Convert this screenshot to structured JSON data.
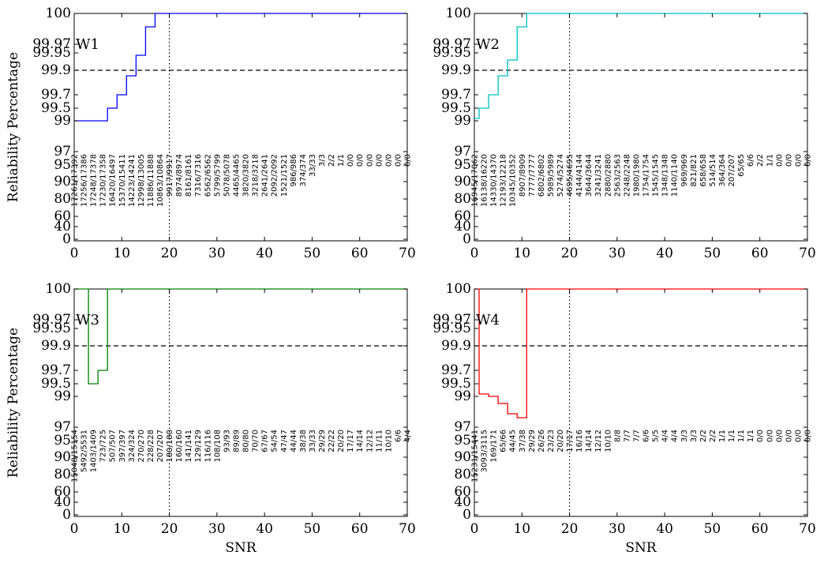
{
  "chart_data": [
    {
      "type": "line",
      "panel": "W1",
      "color": "#0000ff",
      "ylabel": "Reliability Percentage",
      "xlabel": "",
      "xlim": [
        0,
        70
      ],
      "xticks": [
        0,
        10,
        20,
        30,
        40,
        50,
        60,
        70
      ],
      "yticks": [
        "0",
        "40",
        "60",
        "80",
        "90",
        "95",
        "97",
        "99",
        "99.5",
        "99.7",
        "99.9",
        "99.95",
        "99.97",
        "100"
      ],
      "threshold_y": "99.9",
      "vline_x": 20,
      "step_x": [
        0,
        7,
        9,
        11,
        13,
        15,
        17,
        70
      ],
      "step_y": [
        "99",
        "99.5",
        "99.7",
        "99.8",
        "99.92",
        "99.98",
        "100",
        "100"
      ],
      "count_x": [
        0,
        2,
        4,
        6,
        8,
        10,
        12,
        14,
        16,
        18,
        20,
        22,
        24,
        26,
        28,
        30,
        32,
        34,
        36,
        38,
        40,
        42,
        44,
        46,
        48,
        50,
        52,
        54,
        56,
        58,
        60,
        62,
        64,
        66,
        68,
        70
      ],
      "counts": [
        "17261/17392",
        "17256/17386",
        "17248/17378",
        "17230/17358",
        "16420/16497",
        "15370/15411",
        "14223/14241",
        "12998/13005",
        "11886/11888",
        "10863/10864",
        "9917/9917",
        "8974/8974",
        "8161/8161",
        "7316/7316",
        "6562/6562",
        "5799/5799",
        "5078/5078",
        "4465/4465",
        "3820/3820",
        "3218/3218",
        "2641/2641",
        "2092/2092",
        "1521/1521",
        "986/986",
        "374/374",
        "33/33",
        "3/3",
        "2/2",
        "1/1",
        "0/0",
        "0/0",
        "0/0",
        "0/0",
        "0/0",
        "0/0",
        "0/0"
      ]
    },
    {
      "type": "line",
      "panel": "W2",
      "color": "#00bfbf",
      "ylabel": "",
      "xlabel": "",
      "xlim": [
        0,
        70
      ],
      "xticks": [
        0,
        10,
        20,
        30,
        40,
        50,
        60,
        70
      ],
      "yticks": [
        "0",
        "40",
        "60",
        "80",
        "90",
        "95",
        "97",
        "99",
        "99.5",
        "99.7",
        "99.9",
        "99.95",
        "99.97",
        "100"
      ],
      "threshold_y": "99.9",
      "vline_x": 20,
      "step_x": [
        0,
        1,
        3,
        5,
        7,
        9,
        11,
        70
      ],
      "step_y": [
        "99.3",
        "99.5",
        "99.7",
        "99.8",
        "99.93",
        "99.98",
        "100",
        "100"
      ],
      "count_x": [
        0,
        2,
        4,
        6,
        8,
        10,
        12,
        14,
        16,
        18,
        20,
        22,
        24,
        26,
        28,
        30,
        32,
        34,
        36,
        38,
        40,
        42,
        44,
        46,
        48,
        50,
        52,
        54,
        56,
        58,
        60,
        62,
        64,
        66,
        68,
        70
      ],
      "counts": [
        "16945/17062",
        "16138/16220",
        "14330/14370",
        "12193/12218",
        "10345/10352",
        "8907/8909",
        "7777/7777",
        "6802/6802",
        "5989/5989",
        "5274/5274",
        "4695/4695",
        "4144/4144",
        "3644/3644",
        "3241/3241",
        "2880/2880",
        "2563/2563",
        "2248/2248",
        "1980/1980",
        "1754/1754",
        "1545/1545",
        "1348/1348",
        "1140/1140",
        "969/969",
        "821/821",
        "658/658",
        "514/514",
        "364/364",
        "207/207",
        "65/65",
        "6/6",
        "2/2",
        "1/1",
        "0/0",
        "0/0",
        "0/0",
        "0/0"
      ]
    },
    {
      "type": "line",
      "panel": "W3",
      "color": "#008000",
      "ylabel": "Reliability Percentage",
      "xlabel": "SNR",
      "xlim": [
        0,
        70
      ],
      "xticks": [
        0,
        10,
        20,
        30,
        40,
        50,
        60,
        70
      ],
      "yticks": [
        "0",
        "40",
        "60",
        "80",
        "90",
        "95",
        "97",
        "99",
        "99.5",
        "99.7",
        "99.9",
        "99.95",
        "99.97",
        "100"
      ],
      "threshold_y": "99.9",
      "vline_x": 20,
      "step_x": [
        0,
        3,
        5,
        7,
        70
      ],
      "step_y": [
        "99.2",
        "99.5",
        "99.7",
        "100",
        "100"
      ],
      "count_x": [
        0,
        2,
        4,
        6,
        8,
        10,
        12,
        14,
        16,
        18,
        20,
        22,
        24,
        26,
        28,
        30,
        32,
        34,
        36,
        38,
        40,
        42,
        44,
        46,
        48,
        50,
        52,
        54,
        56,
        58,
        60,
        62,
        64,
        66,
        68,
        70
      ],
      "counts": [
        "15048/15154",
        "5492/5531",
        "1403/1409",
        "723/725",
        "507/507",
        "397/397",
        "324/324",
        "270/270",
        "228/228",
        "207/207",
        "180/180",
        "160/160",
        "141/141",
        "129/129",
        "116/116",
        "108/108",
        "93/93",
        "89/89",
        "80/80",
        "70/70",
        "67/67",
        "54/54",
        "47/47",
        "44/44",
        "38/38",
        "33/33",
        "29/29",
        "22/22",
        "20/20",
        "17/17",
        "14/14",
        "12/12",
        "11/11",
        "10/10",
        "6/6",
        "4/4"
      ]
    },
    {
      "type": "line",
      "panel": "W4",
      "color": "#ff0000",
      "ylabel": "",
      "xlabel": "SNR",
      "xlim": [
        0,
        70
      ],
      "xticks": [
        0,
        10,
        20,
        30,
        40,
        50,
        60,
        70
      ],
      "yticks": [
        "0",
        "40",
        "60",
        "80",
        "90",
        "95",
        "97",
        "99",
        "99.5",
        "99.7",
        "99.9",
        "99.95",
        "99.97",
        "100"
      ],
      "threshold_y": "99.9",
      "vline_x": 20,
      "step_x": [
        0,
        1,
        3,
        5,
        7,
        9,
        11,
        70
      ],
      "step_y": [
        "99.2",
        "99.3",
        "99",
        "98.8",
        "98",
        "97.5",
        "100",
        "100"
      ],
      "count_x": [
        0,
        2,
        4,
        6,
        8,
        10,
        12,
        14,
        16,
        18,
        20,
        22,
        24,
        26,
        28,
        30,
        32,
        34,
        36,
        38,
        40,
        42,
        44,
        46,
        48,
        50,
        52,
        54,
        56,
        58,
        60,
        62,
        64,
        66,
        68,
        70
      ],
      "counts": [
        "15231/15441",
        "3093/3115",
        "169/171",
        "65/66",
        "44/45",
        "37/38",
        "29/29",
        "26/26",
        "23/23",
        "20/20",
        "17/17",
        "16/16",
        "14/14",
        "12/12",
        "10/10",
        "8/8",
        "7/7",
        "7/7",
        "6/6",
        "5/5",
        "4/4",
        "4/4",
        "3/3",
        "3/3",
        "2/2",
        "2/2",
        "1/1",
        "1/1",
        "1/1",
        "1/1",
        "0/0",
        "0/0",
        "0/0",
        "0/0",
        "0/0",
        "0/0"
      ]
    }
  ]
}
